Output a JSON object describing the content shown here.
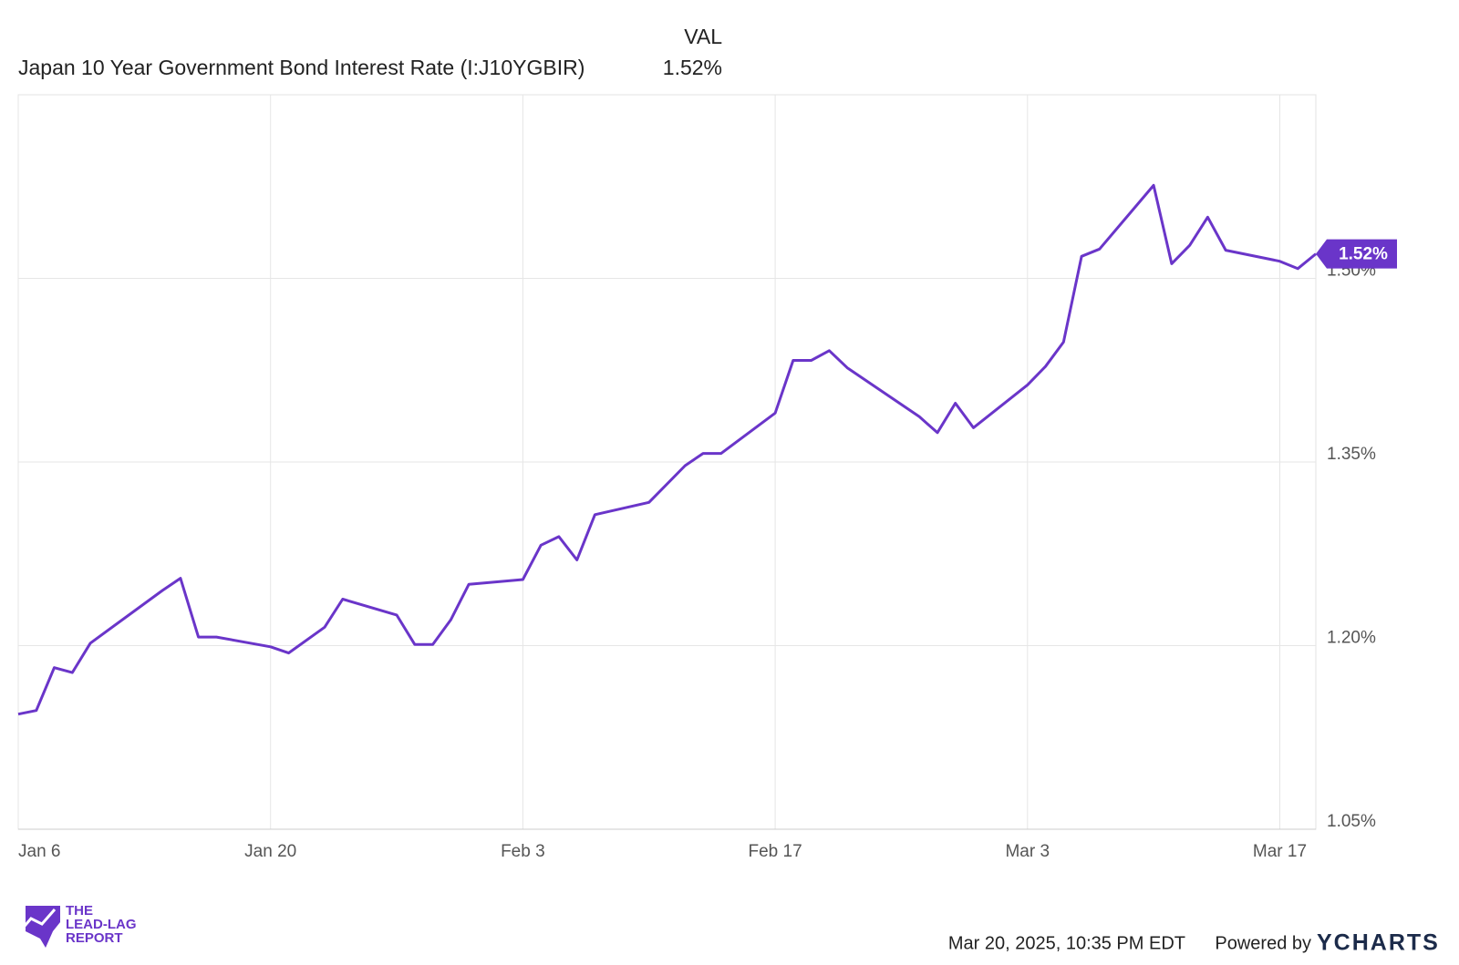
{
  "chart_data": {
    "type": "line",
    "legend_header": "VAL",
    "x": [
      "Jan 6",
      "Jan 7",
      "Jan 8",
      "Jan 9",
      "Jan 10",
      "Jan 14",
      "Jan 15",
      "Jan 16",
      "Jan 17",
      "Jan 20",
      "Jan 21",
      "Jan 23",
      "Jan 24",
      "Jan 27",
      "Jan 28",
      "Jan 29",
      "Jan 30",
      "Jan 31",
      "Feb 3",
      "Feb 4",
      "Feb 5",
      "Feb 6",
      "Feb 7",
      "Feb 10",
      "Feb 12",
      "Feb 13",
      "Feb 14",
      "Feb 17",
      "Feb 18",
      "Feb 19",
      "Feb 20",
      "Feb 21",
      "Feb 25",
      "Feb 26",
      "Feb 27",
      "Feb 28",
      "Mar 3",
      "Mar 4",
      "Mar 5",
      "Mar 6",
      "Mar 7",
      "Mar 10",
      "Mar 11",
      "Mar 12",
      "Mar 13",
      "Mar 14",
      "Mar 17",
      "Mar 18",
      "Mar 19"
    ],
    "series": [
      {
        "name": "Japan 10 Year Government Bond Interest Rate (I:J10YGBIR)",
        "color": "#6a35c9",
        "values": [
          1.144,
          1.147,
          1.182,
          1.178,
          1.202,
          1.245,
          1.255,
          1.207,
          1.207,
          1.199,
          1.194,
          1.215,
          1.238,
          1.225,
          1.201,
          1.201,
          1.221,
          1.25,
          1.254,
          1.282,
          1.289,
          1.27,
          1.307,
          1.317,
          1.347,
          1.357,
          1.357,
          1.39,
          1.433,
          1.433,
          1.441,
          1.427,
          1.387,
          1.374,
          1.398,
          1.378,
          1.413,
          1.428,
          1.448,
          1.518,
          1.524,
          1.576,
          1.512,
          1.527,
          1.55,
          1.523,
          1.514,
          1.508,
          1.52
        ],
        "current_value": {
          "value": 1.52,
          "label": "1.52%"
        }
      }
    ],
    "xlim": [
      "Jan 6",
      "Mar 19"
    ],
    "xticks": [
      "Jan 6",
      "Jan 20",
      "Feb 3",
      "Feb 17",
      "Mar 3",
      "Mar 17"
    ],
    "ylim": [
      1.05,
      1.65
    ],
    "yticks": [
      {
        "value": 1.05,
        "label": "1.05%"
      },
      {
        "value": 1.2,
        "label": "1.20%"
      },
      {
        "value": 1.35,
        "label": "1.35%"
      },
      {
        "value": 1.5,
        "label": "1.50%"
      }
    ],
    "grid": true
  },
  "footer": {
    "timestamp": "Mar 20, 2025, 10:35 PM EDT",
    "powered_by": "Powered by",
    "brand": "YCHARTS",
    "logo": [
      "THE",
      "LEAD-LAG",
      "REPORT"
    ]
  }
}
